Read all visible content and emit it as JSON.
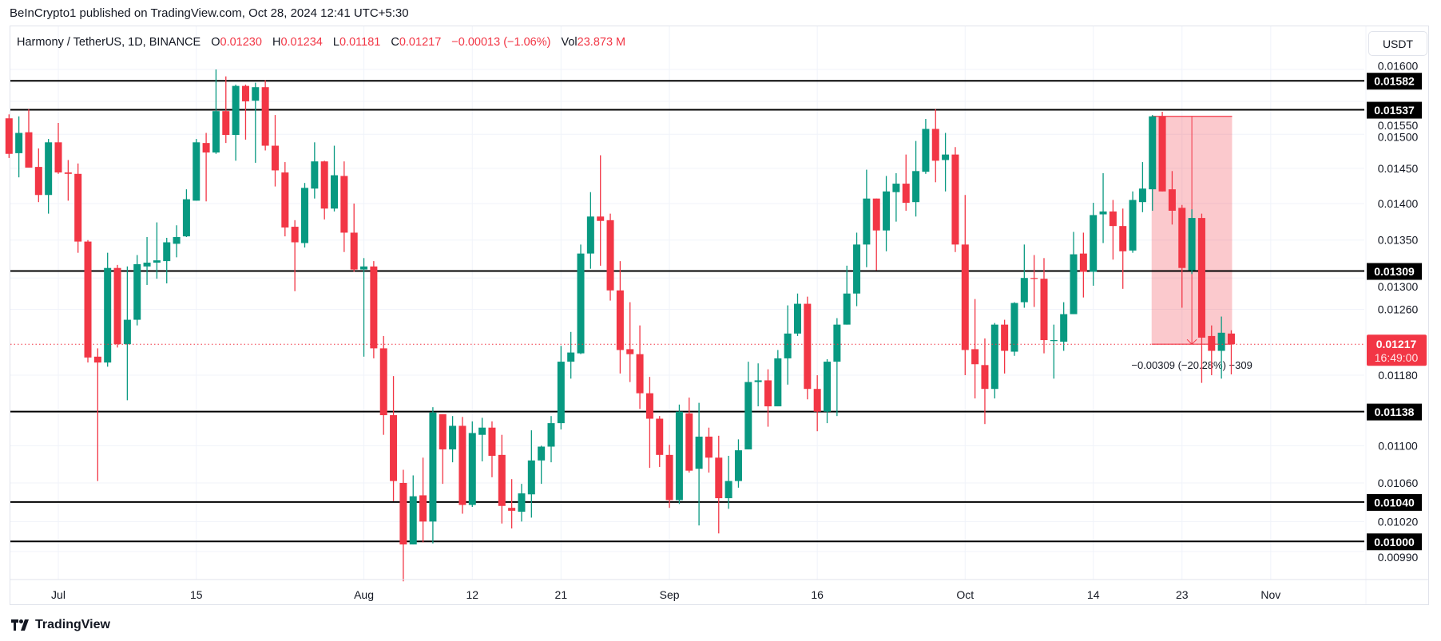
{
  "attribution": "BeInCrypto1 published on TradingView.com, Oct 28, 2024 12:41 UTC+5:30",
  "legend": {
    "symbol": "Harmony / TetherUS, 1D, BINANCE",
    "open_label": "O",
    "open": "0.01230",
    "high_label": "H",
    "high": "0.01234",
    "low_label": "L",
    "low": "0.01181",
    "close_label": "C",
    "close": "0.01217",
    "change": "−0.00013 (−1.06%)",
    "vol_label": "Vol",
    "vol": "23.873 M"
  },
  "unit_button": "USDT",
  "footer": {
    "logo_text": "TradingView",
    "logo_icon": "tradingview-logo-icon"
  },
  "colors": {
    "up": "#089981",
    "down": "#f23645",
    "level": "#000000",
    "measure_fill": "#f23645",
    "grid": "#f0f3fa"
  },
  "chart_data": {
    "type": "candlestick",
    "title": "",
    "y_scale": "log",
    "ylim": [
      0.0095,
      0.016
    ],
    "grid": true,
    "y_ticks": [
      "0.01600",
      "0.01550",
      "0.01500",
      "0.01450",
      "0.01400",
      "0.01350",
      "0.01300",
      "0.01260",
      "0.01180",
      "0.01100",
      "0.01060",
      "0.01020",
      "0.00990"
    ],
    "x_ticks": [
      {
        "date": "2024-07-01",
        "label": "Jul"
      },
      {
        "date": "2024-07-15",
        "label": "15"
      },
      {
        "date": "2024-08-01",
        "label": "Aug"
      },
      {
        "date": "2024-08-12",
        "label": "12"
      },
      {
        "date": "2024-08-21",
        "label": "21"
      },
      {
        "date": "2024-09-01",
        "label": "Sep"
      },
      {
        "date": "2024-09-16",
        "label": "16"
      },
      {
        "date": "2024-10-01",
        "label": "Oct"
      },
      {
        "date": "2024-10-14",
        "label": "14"
      },
      {
        "date": "2024-10-23",
        "label": "23"
      },
      {
        "date": "2024-11-01",
        "label": "Nov"
      }
    ],
    "levels": [
      "0.01582",
      "0.01537",
      "0.01309",
      "0.01138",
      "0.01040",
      "0.01000"
    ],
    "last_price": {
      "value": "0.01217",
      "countdown": "16:49:00"
    },
    "measure": {
      "from_date": "2024-10-20",
      "to_date": "2024-10-28",
      "top": 0.01527,
      "bottom": 0.01217,
      "label": "−0.00309 (−20.28%) −309"
    },
    "columns": [
      "date",
      "open",
      "high",
      "low",
      "close"
    ],
    "candles": [
      [
        "2024-06-26",
        0.01524,
        0.0153,
        0.01465,
        0.01471
      ],
      [
        "2024-06-27",
        0.01472,
        0.01527,
        0.01437,
        0.01502
      ],
      [
        "2024-06-28",
        0.01503,
        0.01538,
        0.01451,
        0.01451
      ],
      [
        "2024-06-29",
        0.01452,
        0.01479,
        0.01402,
        0.01412
      ],
      [
        "2024-06-30",
        0.01412,
        0.01493,
        0.01386,
        0.01488
      ],
      [
        "2024-07-01",
        0.01488,
        0.01517,
        0.01442,
        0.01444
      ],
      [
        "2024-07-02",
        0.01444,
        0.01462,
        0.01404,
        0.01442
      ],
      [
        "2024-07-03",
        0.01442,
        0.01457,
        0.01333,
        0.01348
      ],
      [
        "2024-07-04",
        0.01348,
        0.0135,
        0.01195,
        0.01201
      ],
      [
        "2024-07-05",
        0.01202,
        0.01212,
        0.01062,
        0.01195
      ],
      [
        "2024-07-06",
        0.01195,
        0.01333,
        0.0119,
        0.01313
      ],
      [
        "2024-07-07",
        0.01313,
        0.01317,
        0.01213,
        0.01217
      ],
      [
        "2024-07-08",
        0.01217,
        0.01315,
        0.01151,
        0.01247
      ],
      [
        "2024-07-09",
        0.01247,
        0.0133,
        0.0124,
        0.01318
      ],
      [
        "2024-07-10",
        0.01315,
        0.01354,
        0.01291,
        0.0132
      ],
      [
        "2024-07-11",
        0.0132,
        0.01374,
        0.01299,
        0.01323
      ],
      [
        "2024-07-12",
        0.01322,
        0.01353,
        0.01293,
        0.01347
      ],
      [
        "2024-07-13",
        0.01345,
        0.0137,
        0.01327,
        0.01354
      ],
      [
        "2024-07-14",
        0.01355,
        0.0142,
        0.01354,
        0.01406
      ],
      [
        "2024-07-15",
        0.01404,
        0.01493,
        0.01404,
        0.01488
      ],
      [
        "2024-07-16",
        0.01487,
        0.01502,
        0.01403,
        0.01473
      ],
      [
        "2024-07-17",
        0.01473,
        0.016,
        0.01471,
        0.01535
      ],
      [
        "2024-07-18",
        0.01535,
        0.01589,
        0.01487,
        0.01499
      ],
      [
        "2024-07-19",
        0.01499,
        0.01576,
        0.01461,
        0.01574
      ],
      [
        "2024-07-20",
        0.01574,
        0.01576,
        0.01492,
        0.0155
      ],
      [
        "2024-07-21",
        0.01551,
        0.01579,
        0.01458,
        0.01572
      ],
      [
        "2024-07-22",
        0.01572,
        0.01583,
        0.01476,
        0.01483
      ],
      [
        "2024-07-23",
        0.01483,
        0.01529,
        0.01424,
        0.01447
      ],
      [
        "2024-07-24",
        0.01444,
        0.01459,
        0.01355,
        0.01367
      ],
      [
        "2024-07-25",
        0.01368,
        0.01377,
        0.01283,
        0.01347
      ],
      [
        "2024-07-26",
        0.01346,
        0.01429,
        0.0134,
        0.01422
      ],
      [
        "2024-07-27",
        0.01421,
        0.01488,
        0.01407,
        0.0146
      ],
      [
        "2024-07-28",
        0.0146,
        0.01461,
        0.01378,
        0.01393
      ],
      [
        "2024-07-29",
        0.01393,
        0.01483,
        0.01389,
        0.0144
      ],
      [
        "2024-07-30",
        0.01439,
        0.0146,
        0.01334,
        0.0136
      ],
      [
        "2024-07-31",
        0.0136,
        0.014,
        0.01308,
        0.01311
      ],
      [
        "2024-08-01",
        0.01311,
        0.01326,
        0.01202,
        0.01315
      ],
      [
        "2024-08-02",
        0.01315,
        0.01322,
        0.012,
        0.01212
      ],
      [
        "2024-08-03",
        0.01212,
        0.01227,
        0.01112,
        0.01134
      ],
      [
        "2024-08-04",
        0.01134,
        0.01179,
        0.01041,
        0.01062
      ],
      [
        "2024-08-05",
        0.0106,
        0.01074,
        0.00961,
        0.00997
      ],
      [
        "2024-08-06",
        0.00997,
        0.01068,
        0.00997,
        0.01046
      ],
      [
        "2024-08-07",
        0.01047,
        0.01087,
        0.00999,
        0.0102
      ],
      [
        "2024-08-08",
        0.0102,
        0.01143,
        0.00998,
        0.01137
      ],
      [
        "2024-08-09",
        0.01135,
        0.01135,
        0.01059,
        0.01096
      ],
      [
        "2024-08-10",
        0.01096,
        0.01133,
        0.01082,
        0.01122
      ],
      [
        "2024-08-11",
        0.01122,
        0.01132,
        0.01028,
        0.01037
      ],
      [
        "2024-08-12",
        0.01037,
        0.01127,
        0.01035,
        0.01114
      ],
      [
        "2024-08-13",
        0.01112,
        0.01131,
        0.01083,
        0.0112
      ],
      [
        "2024-08-14",
        0.0112,
        0.01127,
        0.01066,
        0.01089
      ],
      [
        "2024-08-15",
        0.0109,
        0.01112,
        0.01018,
        0.01036
      ],
      [
        "2024-08-16",
        0.01034,
        0.01064,
        0.01013,
        0.01031
      ],
      [
        "2024-08-17",
        0.0103,
        0.01059,
        0.0102,
        0.01049
      ],
      [
        "2024-08-18",
        0.01048,
        0.01117,
        0.01024,
        0.01084
      ],
      [
        "2024-08-19",
        0.01084,
        0.011,
        0.01059,
        0.01099
      ],
      [
        "2024-08-20",
        0.01099,
        0.01133,
        0.01082,
        0.01125
      ],
      [
        "2024-08-21",
        0.01125,
        0.01215,
        0.01118,
        0.01196
      ],
      [
        "2024-08-22",
        0.01196,
        0.01232,
        0.01176,
        0.01207
      ],
      [
        "2024-08-23",
        0.01206,
        0.01344,
        0.01205,
        0.01332
      ],
      [
        "2024-08-24",
        0.01332,
        0.01416,
        0.01312,
        0.01382
      ],
      [
        "2024-08-25",
        0.01382,
        0.01469,
        0.01316,
        0.01376
      ],
      [
        "2024-08-26",
        0.01377,
        0.01386,
        0.01271,
        0.01284
      ],
      [
        "2024-08-27",
        0.01284,
        0.01322,
        0.01182,
        0.0121
      ],
      [
        "2024-08-28",
        0.01211,
        0.01269,
        0.01172,
        0.01205
      ],
      [
        "2024-08-29",
        0.01205,
        0.0124,
        0.01141,
        0.01159
      ],
      [
        "2024-08-30",
        0.01159,
        0.01178,
        0.01076,
        0.0113
      ],
      [
        "2024-08-31",
        0.0113,
        0.01133,
        0.01077,
        0.0109
      ],
      [
        "2024-09-01",
        0.0109,
        0.01101,
        0.01034,
        0.01042
      ],
      [
        "2024-09-02",
        0.01042,
        0.01146,
        0.01038,
        0.01138
      ],
      [
        "2024-09-03",
        0.01136,
        0.01154,
        0.01071,
        0.01073
      ],
      [
        "2024-09-04",
        0.01075,
        0.01148,
        0.01016,
        0.0111
      ],
      [
        "2024-09-05",
        0.0111,
        0.0112,
        0.01071,
        0.01087
      ],
      [
        "2024-09-06",
        0.01087,
        0.01111,
        0.01008,
        0.01044
      ],
      [
        "2024-09-07",
        0.01044,
        0.01089,
        0.01033,
        0.01062
      ],
      [
        "2024-09-08",
        0.01062,
        0.01107,
        0.01055,
        0.01095
      ],
      [
        "2024-09-09",
        0.01096,
        0.01196,
        0.01096,
        0.01172
      ],
      [
        "2024-09-10",
        0.01172,
        0.01194,
        0.01144,
        0.01174
      ],
      [
        "2024-09-11",
        0.01174,
        0.01187,
        0.01121,
        0.01144
      ],
      [
        "2024-09-12",
        0.01144,
        0.0121,
        0.01144,
        0.012
      ],
      [
        "2024-09-13",
        0.012,
        0.01265,
        0.01169,
        0.0123
      ],
      [
        "2024-09-14",
        0.0123,
        0.0128,
        0.01227,
        0.01267
      ],
      [
        "2024-09-15",
        0.01267,
        0.01276,
        0.01152,
        0.01164
      ],
      [
        "2024-09-16",
        0.01164,
        0.0118,
        0.01116,
        0.01138
      ],
      [
        "2024-09-17",
        0.01138,
        0.01199,
        0.01125,
        0.01196
      ],
      [
        "2024-09-18",
        0.01196,
        0.01249,
        0.01133,
        0.01241
      ],
      [
        "2024-09-19",
        0.01241,
        0.01316,
        0.01241,
        0.0128
      ],
      [
        "2024-09-20",
        0.0128,
        0.0136,
        0.01264,
        0.01344
      ],
      [
        "2024-09-21",
        0.01344,
        0.01448,
        0.01314,
        0.01407
      ],
      [
        "2024-09-22",
        0.01407,
        0.01407,
        0.0131,
        0.01363
      ],
      [
        "2024-09-23",
        0.01363,
        0.01439,
        0.01335,
        0.01417
      ],
      [
        "2024-09-24",
        0.01416,
        0.01443,
        0.01375,
        0.01428
      ],
      [
        "2024-09-25",
        0.01428,
        0.0147,
        0.0139,
        0.01401
      ],
      [
        "2024-09-26",
        0.01402,
        0.0149,
        0.01382,
        0.01446
      ],
      [
        "2024-09-27",
        0.01445,
        0.01523,
        0.01442,
        0.01508
      ],
      [
        "2024-09-28",
        0.01508,
        0.01538,
        0.0143,
        0.01461
      ],
      [
        "2024-09-29",
        0.01462,
        0.01502,
        0.01417,
        0.0147
      ],
      [
        "2024-09-30",
        0.0147,
        0.01481,
        0.01334,
        0.01344
      ],
      [
        "2024-10-01",
        0.01344,
        0.01412,
        0.0118,
        0.0121
      ],
      [
        "2024-10-02",
        0.01211,
        0.01273,
        0.01153,
        0.01193
      ],
      [
        "2024-10-03",
        0.01192,
        0.01224,
        0.01124,
        0.01164
      ],
      [
        "2024-10-04",
        0.01164,
        0.01243,
        0.01153,
        0.01241
      ],
      [
        "2024-10-05",
        0.01241,
        0.01247,
        0.01182,
        0.01209
      ],
      [
        "2024-10-06",
        0.01208,
        0.01269,
        0.01203,
        0.01268
      ],
      [
        "2024-10-07",
        0.01269,
        0.01344,
        0.01262,
        0.013
      ],
      [
        "2024-10-08",
        0.013,
        0.0133,
        0.01263,
        0.01299
      ],
      [
        "2024-10-09",
        0.01299,
        0.01326,
        0.01206,
        0.01222
      ],
      [
        "2024-10-10",
        0.01221,
        0.01241,
        0.01176,
        0.01222
      ],
      [
        "2024-10-11",
        0.0122,
        0.01269,
        0.01209,
        0.01254
      ],
      [
        "2024-10-12",
        0.01254,
        0.01361,
        0.01254,
        0.01331
      ],
      [
        "2024-10-13",
        0.01332,
        0.0136,
        0.01275,
        0.01308
      ],
      [
        "2024-10-14",
        0.01308,
        0.01401,
        0.0129,
        0.01384
      ],
      [
        "2024-10-15",
        0.01385,
        0.01443,
        0.01346,
        0.01389
      ],
      [
        "2024-10-16",
        0.01389,
        0.01405,
        0.01324,
        0.01369
      ],
      [
        "2024-10-17",
        0.01369,
        0.01393,
        0.01286,
        0.01335
      ],
      [
        "2024-10-18",
        0.01336,
        0.01417,
        0.01333,
        0.01405
      ],
      [
        "2024-10-19",
        0.01402,
        0.01459,
        0.01388,
        0.01421
      ],
      [
        "2024-10-20",
        0.0142,
        0.01529,
        0.0139,
        0.01527
      ],
      [
        "2024-10-21",
        0.01527,
        0.01534,
        0.01417,
        0.01417
      ],
      [
        "2024-10-22",
        0.0142,
        0.01446,
        0.01371,
        0.0139
      ],
      [
        "2024-10-23",
        0.01394,
        0.01398,
        0.01262,
        0.01313
      ],
      [
        "2024-10-24",
        0.0131,
        0.01392,
        0.01305,
        0.0138
      ],
      [
        "2024-10-25",
        0.0138,
        0.01386,
        0.01171,
        0.01225
      ],
      [
        "2024-10-26",
        0.01227,
        0.0124,
        0.0118,
        0.01209
      ],
      [
        "2024-10-27",
        0.01209,
        0.01251,
        0.01176,
        0.01231
      ],
      [
        "2024-10-28",
        0.0123,
        0.01234,
        0.01181,
        0.01217
      ]
    ]
  }
}
